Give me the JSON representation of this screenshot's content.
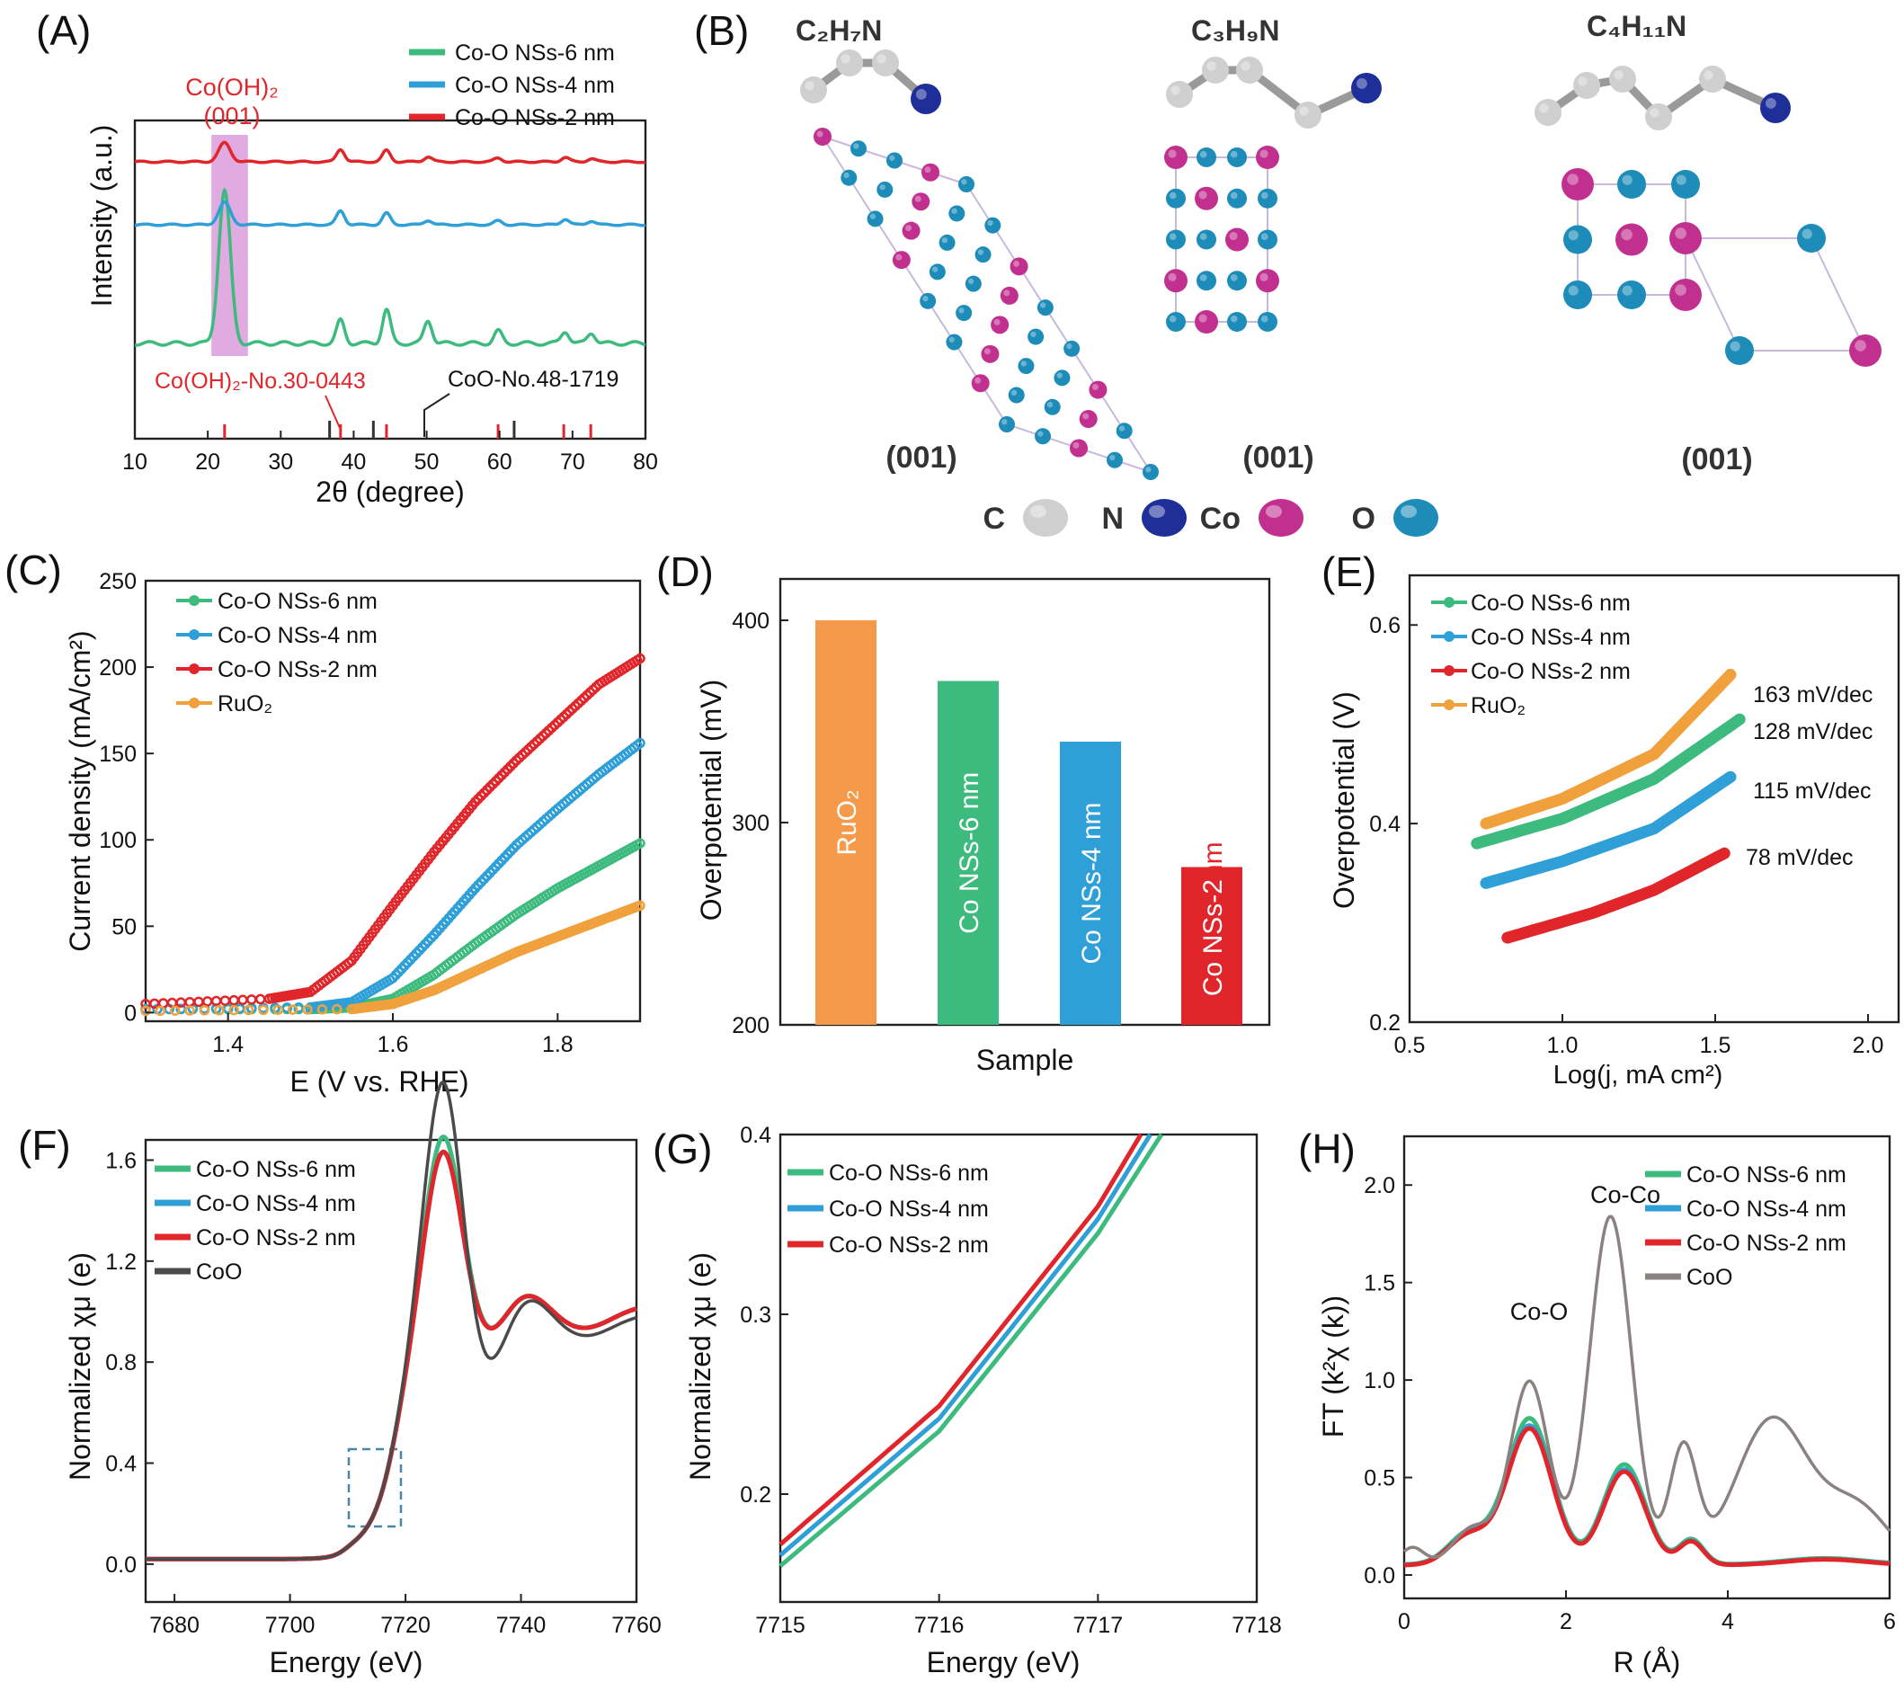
{
  "colors": {
    "s6": "#3dbb7e",
    "s4": "#2f9fd8",
    "s2": "#e0262b",
    "ruo2": "#f0a13c",
    "coo": "#4a4a4a",
    "coo_h": "#8a8280",
    "ruo2_bar": "#f5994a",
    "red_text": "#e0262b",
    "highlight": "#d48fd6",
    "box": "#4a86a8",
    "atom_c": "#cfcfcf",
    "atom_n": "#1f2f9a",
    "atom_co": "#c2308f",
    "atom_o": "#1d8cb8"
  },
  "chart_data": [
    {
      "id": "A",
      "type": "line",
      "panel_label": "(A)",
      "xlabel": "2θ (degree)",
      "ylabel": "Intensity (a.u.)",
      "xlim": [
        10,
        80
      ],
      "xticks": [
        10,
        20,
        30,
        40,
        50,
        60,
        70,
        80
      ],
      "series": [
        {
          "name": "Co-O NSs-6 nm",
          "color_key": "s6",
          "peaks": [
            [
              22.3,
              1.0
            ],
            [
              38.2,
              0.15
            ],
            [
              44.5,
              0.22
            ],
            [
              50.2,
              0.15
            ],
            [
              59.8,
              0.08
            ],
            [
              69.0,
              0.08
            ],
            [
              72.6,
              0.07
            ]
          ]
        },
        {
          "name": "Co-O NSs-4 nm",
          "color_key": "s4",
          "peaks": [
            [
              22.3,
              0.35
            ],
            [
              38.2,
              0.22
            ],
            [
              44.5,
              0.18
            ],
            [
              50.2,
              0.07
            ],
            [
              59.8,
              0.06
            ],
            [
              69.0,
              0.09
            ],
            [
              72.6,
              0.06
            ]
          ]
        },
        {
          "name": "Co-O NSs-2 nm",
          "color_key": "s2",
          "peaks": [
            [
              22.3,
              0.3
            ],
            [
              38.2,
              0.2
            ],
            [
              44.5,
              0.18
            ],
            [
              50.2,
              0.08
            ],
            [
              59.8,
              0.06
            ],
            [
              69.0,
              0.07
            ],
            [
              72.6,
              0.05
            ]
          ]
        }
      ],
      "highlight_range": [
        20.5,
        25.5
      ],
      "ref_sticks": {
        "co_oh2": [
          22.3,
          38.2,
          44.5,
          59.8,
          68.8,
          72.5
        ],
        "coo": [
          36.7,
          42.7,
          62.0
        ],
        "co_oh2_label": "Co(OH)₂-No.30-0443",
        "coo_label": "CoO-No.48-1719"
      },
      "peak_label": "Co(OH)₂",
      "peak_label_2": "(001)"
    },
    {
      "id": "B",
      "type": "other",
      "panel_label": "(B)",
      "molecules": [
        "C₂H₇N",
        "C₃H₉N",
        "C₄H₁₁N"
      ],
      "plane_labels": [
        "(001)",
        "(001)",
        "(001)"
      ],
      "atom_legend": [
        {
          "label": "C",
          "color_key": "atom_c"
        },
        {
          "label": "N",
          "color_key": "atom_n"
        },
        {
          "label": "Co",
          "color_key": "atom_co"
        },
        {
          "label": "O",
          "color_key": "atom_o"
        }
      ]
    },
    {
      "id": "C",
      "type": "scatter",
      "panel_label": "(C)",
      "xlabel": "E (V vs. RHE)",
      "ylabel": "Current density (mA/cm²)",
      "xlim": [
        1.3,
        1.9
      ],
      "ylim": [
        -5,
        250
      ],
      "xticks": [
        1.4,
        1.6,
        1.8
      ],
      "yticks": [
        0,
        50,
        100,
        150,
        200,
        250
      ],
      "series": [
        {
          "name": "Co-O NSs-6 nm",
          "color_key": "s6",
          "x": [
            1.3,
            1.5,
            1.55,
            1.6,
            1.65,
            1.7,
            1.75,
            1.8,
            1.85,
            1.9
          ],
          "y": [
            2,
            2,
            3,
            8,
            22,
            40,
            57,
            72,
            85,
            98
          ]
        },
        {
          "name": "Co-O NSs-4 nm",
          "color_key": "s4",
          "x": [
            1.3,
            1.5,
            1.55,
            1.6,
            1.65,
            1.7,
            1.75,
            1.8,
            1.85,
            1.9
          ],
          "y": [
            2,
            3,
            6,
            20,
            45,
            72,
            97,
            118,
            138,
            156
          ]
        },
        {
          "name": "Co-O NSs-2 nm",
          "color_key": "s2",
          "x": [
            1.3,
            1.45,
            1.5,
            1.55,
            1.6,
            1.65,
            1.7,
            1.75,
            1.8,
            1.85,
            1.9
          ],
          "y": [
            5,
            8,
            12,
            30,
            62,
            93,
            122,
            146,
            168,
            190,
            205
          ]
        },
        {
          "name": "RuO₂",
          "color_key": "ruo2",
          "x": [
            1.3,
            1.55,
            1.6,
            1.65,
            1.7,
            1.75,
            1.8,
            1.85,
            1.9
          ],
          "y": [
            1,
            2,
            5,
            13,
            24,
            35,
            44,
            53,
            62
          ]
        }
      ]
    },
    {
      "id": "D",
      "type": "bar",
      "panel_label": "(D)",
      "xlabel": "Sample",
      "ylabel": "Overpotential (mV)",
      "ylim": [
        200,
        420
      ],
      "yticks": [
        200,
        300,
        400
      ],
      "categories": [
        "RuO₂",
        "Co NSs-6 nm",
        "Co NSs-4 nm",
        "Co NSs-2"
      ],
      "category_suffix_last": "nm",
      "values": [
        400,
        370,
        340,
        278
      ],
      "color_keys": [
        "ruo2_bar",
        "s6",
        "s4",
        "s2"
      ]
    },
    {
      "id": "E",
      "type": "line",
      "panel_label": "(E)",
      "xlabel": "Log(j, mA cm²)",
      "ylabel": "Overpotential (V)",
      "xlim": [
        0.5,
        2.1
      ],
      "ylim": [
        0.2,
        0.65
      ],
      "xticks": [
        0.5,
        1.0,
        1.5,
        2.0
      ],
      "yticks": [
        0.2,
        0.4,
        0.6
      ],
      "series": [
        {
          "name": "Co-O NSs-6 nm",
          "color_key": "s6",
          "x": [
            0.72,
            1.0,
            1.3,
            1.58
          ],
          "y": [
            0.38,
            0.405,
            0.445,
            0.505
          ]
        },
        {
          "name": "Co-O NSs-4 nm",
          "color_key": "s4",
          "x": [
            0.75,
            1.0,
            1.3,
            1.55
          ],
          "y": [
            0.34,
            0.362,
            0.395,
            0.447
          ]
        },
        {
          "name": "Co-O NSs-2 nm",
          "color_key": "s2",
          "x": [
            0.82,
            1.1,
            1.3,
            1.53
          ],
          "y": [
            0.285,
            0.31,
            0.333,
            0.37
          ]
        },
        {
          "name": "RuO₂",
          "color_key": "ruo2",
          "x": [
            0.75,
            1.0,
            1.3,
            1.55
          ],
          "y": [
            0.4,
            0.425,
            0.47,
            0.55
          ]
        }
      ],
      "annotations": [
        "163 mV/dec",
        "128 mV/dec",
        "115 mV/dec",
        "78 mV/dec"
      ]
    },
    {
      "id": "F",
      "type": "line",
      "panel_label": "(F)",
      "xlabel": "Energy (eV)",
      "ylabel": "Normalized χμ (e)",
      "xlim": [
        7675,
        7760
      ],
      "ylim": [
        -0.15,
        1.68
      ],
      "xticks": [
        7680,
        7700,
        7720,
        7740,
        7760
      ],
      "yticks": [
        0.0,
        0.4,
        0.8,
        1.2,
        1.6
      ],
      "series": [
        {
          "name": "Co-O NSs-6 nm",
          "color_key": "s6"
        },
        {
          "name": "Co-O NSs-4 nm",
          "color_key": "s4"
        },
        {
          "name": "Co-O NSs-2 nm",
          "color_key": "s2"
        },
        {
          "name": "CoO",
          "color_key": "coo"
        }
      ]
    },
    {
      "id": "G",
      "type": "line",
      "panel_label": "(G)",
      "xlabel": "Energy (eV)",
      "ylabel": "Normalized χμ (e)",
      "xlim": [
        7715,
        7718
      ],
      "ylim": [
        0.14,
        0.4
      ],
      "xticks": [
        7715,
        7716,
        7717,
        7718
      ],
      "yticks": [
        0.2,
        0.3,
        0.4
      ],
      "series": [
        {
          "name": "Co-O NSs-6 nm",
          "color_key": "s6",
          "x": [
            7715,
            7716,
            7717,
            7717.4
          ],
          "y": [
            0.16,
            0.235,
            0.345,
            0.4
          ]
        },
        {
          "name": "Co-O NSs-4 nm",
          "color_key": "s4",
          "x": [
            7715,
            7716,
            7717,
            7717.33
          ],
          "y": [
            0.166,
            0.242,
            0.353,
            0.4
          ]
        },
        {
          "name": "Co-O NSs-2 nm",
          "color_key": "s2",
          "x": [
            7715,
            7716,
            7717,
            7717.27
          ],
          "y": [
            0.172,
            0.249,
            0.36,
            0.4
          ]
        }
      ]
    },
    {
      "id": "H",
      "type": "line",
      "panel_label": "(H)",
      "xlabel": "R (Å)",
      "ylabel": "FT (k²χ (k))",
      "xlim": [
        0,
        6
      ],
      "ylim": [
        -0.12,
        2.25
      ],
      "xticks": [
        0,
        2,
        4,
        6
      ],
      "yticks": [
        0.0,
        0.5,
        1.0,
        1.5,
        2.0
      ],
      "series": [
        {
          "name": "Co-O NSs-6 nm",
          "color_key": "s6"
        },
        {
          "name": "Co-O NSs-4 nm",
          "color_key": "s4"
        },
        {
          "name": "Co-O NSs-2 nm",
          "color_key": "s2"
        },
        {
          "name": "CoO",
          "color_key": "coo_h"
        }
      ],
      "annotations": [
        "Co-Co",
        "Co-O"
      ]
    }
  ]
}
